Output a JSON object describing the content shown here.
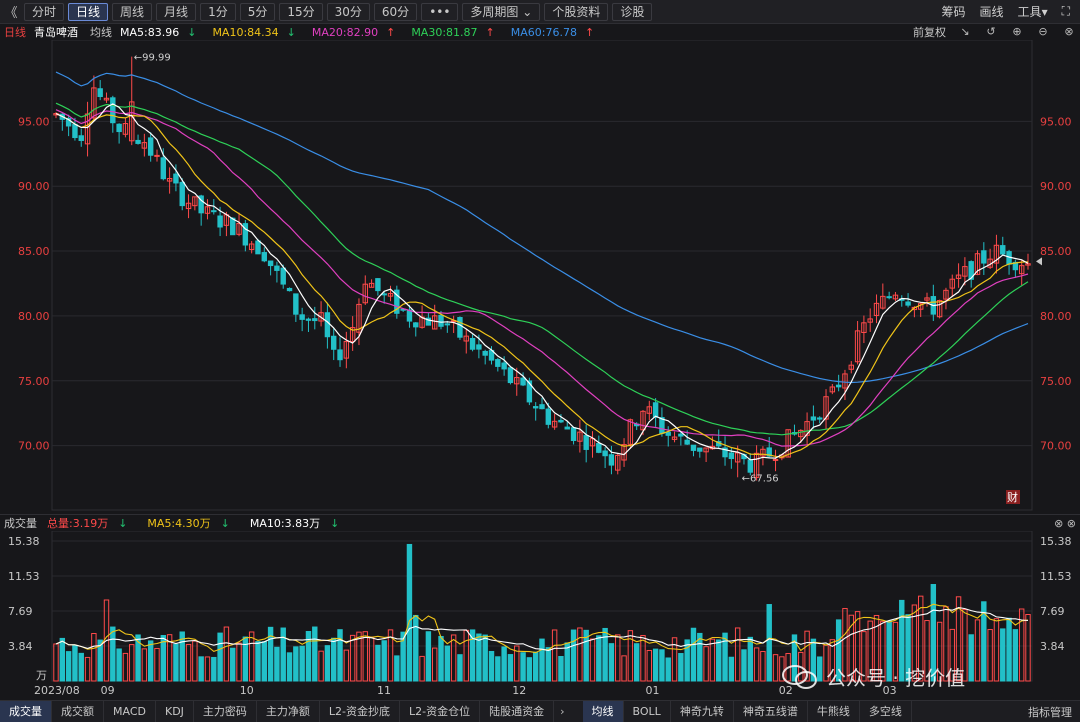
{
  "toolbar": {
    "back": "《",
    "periods": [
      {
        "label": "分时",
        "active": false
      },
      {
        "label": "日线",
        "active": true
      },
      {
        "label": "周线",
        "active": false
      },
      {
        "label": "月线",
        "active": false
      },
      {
        "label": "1分",
        "active": false
      },
      {
        "label": "5分",
        "active": false
      },
      {
        "label": "15分",
        "active": false
      },
      {
        "label": "30分",
        "active": false
      },
      {
        "label": "60分",
        "active": false
      }
    ],
    "more": "•••",
    "multi_period": "多周期图",
    "stock_info": "个股资料",
    "diagnose": "诊股",
    "right": {
      "chips": "筹码",
      "draw": "画线",
      "tools": "工具"
    }
  },
  "legend": {
    "period": "日线",
    "name": "青岛啤酒",
    "avg_label": "均线",
    "ma5": "MA5:83.96",
    "ma10": "MA10:84.34",
    "ma20": "MA20:82.90",
    "ma30": "MA30:81.87",
    "ma60": "MA60:76.78",
    "adjust": "前复权"
  },
  "colors": {
    "up": "#ff4a4a",
    "down": "#22c0c8",
    "ma5": "#ffffff",
    "ma10": "#f0c419",
    "ma20": "#e040c0",
    "ma30": "#2ed158",
    "ma60": "#3a8ee6",
    "axis_text": "#e84040",
    "vol_axis": "#c8c8c8"
  },
  "chart_data": {
    "type": "candlestick",
    "price_ticks": [
      "95.00",
      "90.00",
      "85.00",
      "80.00",
      "75.00",
      "70.00"
    ],
    "price_tick_values": [
      95,
      90,
      85,
      80,
      75,
      70
    ],
    "ylim": [
      65.5,
      100.5
    ],
    "high_label": "←99.99",
    "low_label": "←67.56",
    "fin_badge": "财",
    "ma5_end": 83.96,
    "ma10_end": 84.34,
    "ma20_end": 82.9,
    "ma30_end": 81.87,
    "ma60_end": 76.78,
    "x_labels": [
      "2023/08",
      "09",
      "10",
      "11",
      "12",
      "01",
      "02",
      "03"
    ],
    "volume": {
      "title": "成交量",
      "total": "总量:3.19万",
      "ma5": "MA5:4.30万",
      "ma10": "MA10:3.83万",
      "ticks": [
        "15.38",
        "11.53",
        "7.69",
        "3.84"
      ],
      "tick_values": [
        15.38,
        11.53,
        7.69,
        3.84
      ],
      "unit": "万",
      "ylim": [
        0,
        15.38
      ]
    }
  },
  "tabs": {
    "items": [
      "成交量",
      "成交额",
      "MACD",
      "KDJ",
      "主力密码",
      "主力净额",
      "L2-资金抄底",
      "L2-资金仓位",
      "陆股通资金"
    ],
    "items2": [
      "均线",
      "BOLL",
      "神奇九转",
      "神奇五线谱",
      "牛熊线",
      "多空线"
    ],
    "manage": "指标管理"
  },
  "watermark": {
    "text": "公众号 · 挖价值"
  }
}
